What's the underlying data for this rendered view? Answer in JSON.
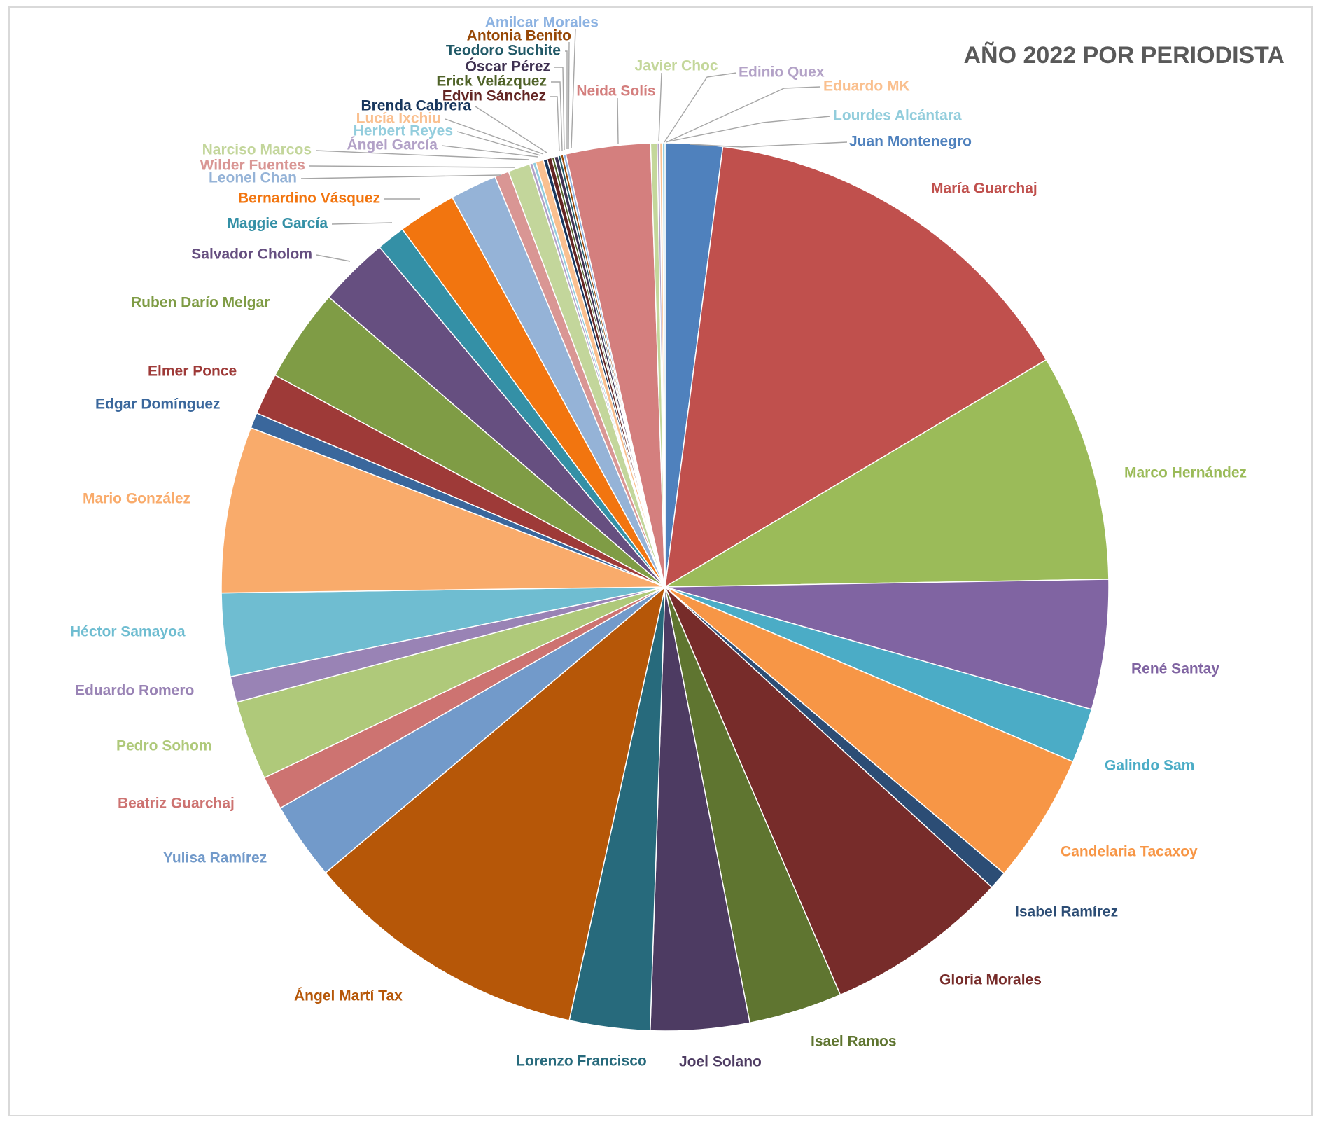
{
  "chart_data": {
    "type": "pie",
    "title": "AÑO 2022 POR PERIODISTA",
    "start_angle_deg": 0,
    "direction": "clockwise",
    "legend": "none",
    "slices": [
      {
        "label": "Juan Montenegro",
        "value": 2.2,
        "color": "#4f81bd"
      },
      {
        "label": "María Guarchaj",
        "value": 15.2,
        "color": "#c0504d"
      },
      {
        "label": "Marco Hernández",
        "value": 8.75,
        "color": "#9bbb59"
      },
      {
        "label": "René Santay",
        "value": 5.0,
        "color": "#8064a2"
      },
      {
        "label": "Galindo Sam",
        "value": 2.1,
        "color": "#4bacc6"
      },
      {
        "label": "Candelaria Tacaxoy",
        "value": 5.0,
        "color": "#f79646"
      },
      {
        "label": "Isabel Ramírez",
        "value": 0.7,
        "color": "#2c4d75"
      },
      {
        "label": "Gloria Morales",
        "value": 7.1,
        "color": "#772c2a"
      },
      {
        "label": "Isael Ramos",
        "value": 3.6,
        "color": "#5f7530"
      },
      {
        "label": "Joel Solano",
        "value": 3.8,
        "color": "#4d3b62"
      },
      {
        "label": "Lorenzo Francisco",
        "value": 3.1,
        "color": "#276a7c"
      },
      {
        "label": "Ángel Martí Tax",
        "value": 11.0,
        "color": "#b65708"
      },
      {
        "label": "Yulisa Ramírez",
        "value": 3.0,
        "color": "#729aca"
      },
      {
        "label": "Beatriz Guarchaj",
        "value": 1.3,
        "color": "#cd7371"
      },
      {
        "label": "Pedro Sohom",
        "value": 3.05,
        "color": "#afc97a"
      },
      {
        "label": "Eduardo Romero",
        "value": 1.0,
        "color": "#9983b5"
      },
      {
        "label": "Héctor Samayoa",
        "value": 3.2,
        "color": "#6fbdd1"
      },
      {
        "label": "Mario González",
        "value": 6.4,
        "color": "#f9ab6b"
      },
      {
        "label": "Edgar Domínguez",
        "value": 0.6,
        "color": "#3a679c"
      },
      {
        "label": "Elmer Ponce",
        "value": 1.6,
        "color": "#9e3a38"
      },
      {
        "label": "Ruben Darío Melgar",
        "value": 3.6,
        "color": "#7f9c45"
      },
      {
        "label": "Salvador Cholom",
        "value": 2.7,
        "color": "#664f80"
      },
      {
        "label": "Maggie García",
        "value": 1.1,
        "color": "#3490a6"
      },
      {
        "label": "Bernardino Vásquez",
        "value": 2.25,
        "color": "#f2750f"
      },
      {
        "label": "Leonel Chan",
        "value": 1.8,
        "color": "#95b3d7"
      },
      {
        "label": "Wilder Fuentes",
        "value": 0.55,
        "color": "#d99694"
      },
      {
        "label": "Narciso Marcos",
        "value": 0.85,
        "color": "#c3d69b"
      },
      {
        "label": "Ángel García",
        "value": 0.12,
        "color": "#b2a1c7"
      },
      {
        "label": "Herbert Reyes",
        "value": 0.12,
        "color": "#93cddd"
      },
      {
        "label": "Lucía Ixchiu",
        "value": 0.3,
        "color": "#fac090"
      },
      {
        "label": "Brenda Cabrera",
        "value": 0.15,
        "color": "#17365d"
      },
      {
        "label": "Edvin Sánchez",
        "value": 0.18,
        "color": "#632523"
      },
      {
        "label": "Erick Velázquez",
        "value": 0.1,
        "color": "#4f6228"
      },
      {
        "label": "Óscar Pérez",
        "value": 0.15,
        "color": "#3f3151"
      },
      {
        "label": "Teodoro Suchite",
        "value": 0.1,
        "color": "#215967"
      },
      {
        "label": "Antonia Benito",
        "value": 0.1,
        "color": "#974806"
      },
      {
        "label": "Amilcar Morales",
        "value": 0.1,
        "color": "#8db3e2"
      },
      {
        "label": "Neida Solís",
        "value": 3.25,
        "color": "#d47f7e"
      },
      {
        "label": "Javier Choc",
        "value": 0.25,
        "color": "#c4d79b"
      },
      {
        "label": "Edinio Quex",
        "value": 0.1,
        "color": "#b3a2c7"
      },
      {
        "label": "Eduardo MK",
        "value": 0.1,
        "color": "#fac08f"
      },
      {
        "label": "Lourdes Alcántara",
        "value": 0.1,
        "color": "#92cddc"
      }
    ]
  }
}
